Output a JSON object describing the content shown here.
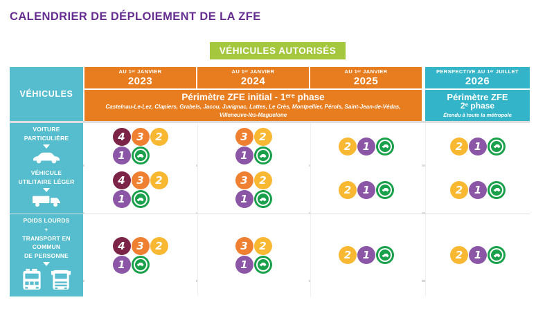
{
  "page": {
    "title": "CALENDRIER DE DÉPLOIEMENT DE LA ZFE",
    "badge": "VÉHICULES AUTORISÉS"
  },
  "colors": {
    "title_purple": "#662e91",
    "badge_green": "#a5c73e",
    "header_orange": "#e87d1f",
    "vehicles_teal": "#56bdcf",
    "phase2_teal": "#33b4c8",
    "vignettes": {
      "1": "#8a56a5",
      "2": "#f8b832",
      "3": "#f08031",
      "4": "#7c2348",
      "ev": "#18a04a"
    }
  },
  "table": {
    "vehicles_header": "VÉHICULES",
    "columns": [
      {
        "period": "AU 1ᵉʳ JANVIER",
        "year": "2023"
      },
      {
        "period": "AU 1ᵉʳ JANVIER",
        "year": "2024"
      },
      {
        "period": "AU 1ᵉʳ JANVIER",
        "year": "2025"
      },
      {
        "period": "PERSPECTIVE AU 1ᵉʳ JUILLET",
        "year": "2026"
      }
    ],
    "phase1": {
      "title": "Périmètre ZFE initial - 1ᵉʳᵉ phase",
      "cities": "Castelnau-Le-Lez, Clapiers, Grabels, Jacou, Juvignac, Lattes, Le Crès, Montpellier, Pérols, Saint-Jean-de-Védas, Villeneuve-lès-Maguelone"
    },
    "phase2": {
      "title": "Périmètre ZFE",
      "subtitle": "2ᵉ phase",
      "note": "Étendu à toute la métropole"
    },
    "rows": [
      {
        "id": "voiture-particuliere",
        "label": "VOITURE\nPARTICULIÈRE",
        "icons": [
          "car"
        ],
        "cells": [
          [
            [
              "4",
              "3",
              "2"
            ],
            [
              "1",
              "ev"
            ]
          ],
          [
            [
              "3",
              "2"
            ],
            [
              "1",
              "ev"
            ]
          ],
          [
            [
              "2",
              "1",
              "ev"
            ]
          ],
          [
            [
              "2",
              "1",
              "ev"
            ]
          ]
        ]
      },
      {
        "id": "vehicule-utilitaire-leger",
        "label": "VÉHICULE\nUTILITAIRE LÉGER",
        "icons": [
          "van"
        ],
        "cells": [
          [
            [
              "4",
              "3",
              "2"
            ],
            [
              "1",
              "ev"
            ]
          ],
          [
            [
              "3",
              "2"
            ],
            [
              "1",
              "ev"
            ]
          ],
          [
            [
              "2",
              "1",
              "ev"
            ]
          ],
          [
            [
              "2",
              "1",
              "ev"
            ]
          ]
        ]
      },
      {
        "id": "poids-lourds-transport-commun",
        "label": "POIDS LOURDS\n+\nTRANSPORT EN COMMUN\nDE PERSONNE",
        "icons": [
          "bus",
          "truck"
        ],
        "cells": [
          [
            [
              "4",
              "3",
              "2"
            ],
            [
              "1",
              "ev"
            ]
          ],
          [
            [
              "3",
              "2"
            ],
            [
              "1",
              "ev"
            ]
          ],
          [
            [
              "2",
              "1",
              "ev"
            ]
          ],
          [
            [
              "2",
              "1",
              "ev"
            ]
          ]
        ]
      }
    ]
  }
}
